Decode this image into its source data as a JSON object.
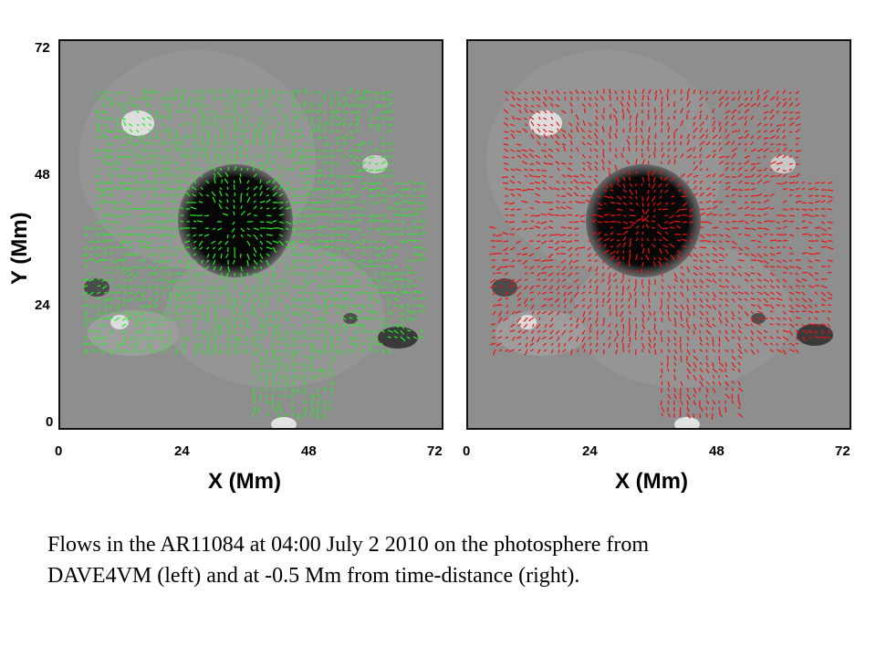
{
  "figure": {
    "left_panel_label": "DAVE4VM (left)",
    "right_panel_label": "time-distance (right)",
    "x_axis_title": "X (Mm)",
    "y_axis_title": "Y (Mm)",
    "x_ticks": [
      "0",
      "24",
      "48",
      "72"
    ],
    "y_ticks": [
      "72",
      "48",
      "24",
      "0"
    ],
    "colors": {
      "left_vectors": "#22ee22",
      "right_vectors": "#ee1111",
      "magnetogram_background": "#8c8c8c",
      "umbra": "#050505"
    },
    "icons": [
      "magnetogram-image",
      "velocity-vector-field",
      "sunspot-umbra"
    ]
  },
  "caption": {
    "line1": "Flows in the AR11084 at 04:00 July 2 2010 on the photosphere from",
    "line2": "DAVE4VM (left) and at -0.5 Mm  from time-distance (right)."
  }
}
